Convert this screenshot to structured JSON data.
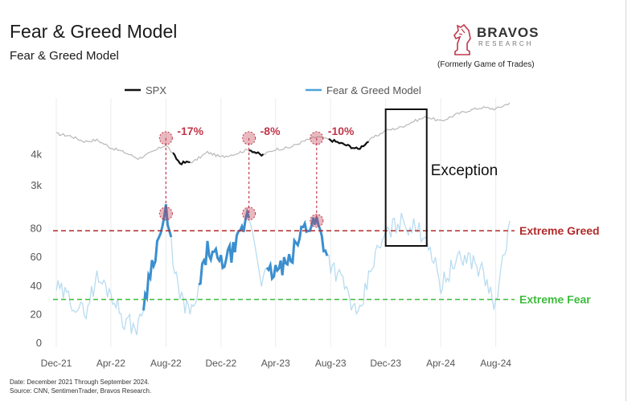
{
  "title": "Fear & Greed Model",
  "subtitle": "Fear & Greed Model",
  "brand": {
    "name": "BRAVOS",
    "sub": "RESEARCH",
    "note": "(Formerly Game of Trades)",
    "logo_icon": "knight-chess-piece-icon",
    "accent_color": "#c0374a"
  },
  "footer": {
    "date_note": "Date: December 2021 Through September 2024.",
    "source_note": "Source: CNN, SentimenTrader, Bravos Research."
  },
  "chart_data": {
    "type": "line",
    "legend": [
      {
        "name": "SPX",
        "color": "#111111"
      },
      {
        "name": "Fear & Greed Model",
        "color": "#4ba3d9"
      }
    ],
    "legend_position": "top",
    "x_tick_labels": [
      "Dec-21",
      "Apr-22",
      "Aug-22",
      "Dec-22",
      "Apr-23",
      "Aug-23",
      "Dec-23",
      "Apr-24",
      "Aug-24"
    ],
    "x_range": [
      "2021-12",
      "2024-09"
    ],
    "spx_tick_labels": [
      "4k",
      "3k"
    ],
    "fg_tick_labels": [
      "80",
      "60",
      "40",
      "20",
      "0"
    ],
    "fg_range": [
      0,
      100
    ],
    "thresholds": [
      {
        "name": "Extreme Greed",
        "value": 78,
        "color": "#b22a2a"
      },
      {
        "name": "Extreme Fear",
        "value": 30,
        "color": "#3dbd3d"
      }
    ],
    "annotations": [
      {
        "text": "-17%",
        "date": "2022-08",
        "fg_value": 90,
        "color": "#c0374a"
      },
      {
        "text": "-8%",
        "date": "2023-02",
        "fg_value": 90,
        "color": "#c0374a"
      },
      {
        "text": "-10%",
        "date": "2023-07",
        "fg_value": 85,
        "color": "#c0374a"
      }
    ],
    "exception": {
      "text": "Exception",
      "from": "2023-12",
      "to": "2024-03"
    },
    "series": [
      {
        "name": "SPX",
        "dates": [
          "2021-12-01",
          "2022-01-01",
          "2022-02-01",
          "2022-03-01",
          "2022-04-01",
          "2022-05-01",
          "2022-06-01",
          "2022-07-01",
          "2022-08-01",
          "2022-09-01",
          "2022-10-01",
          "2022-11-01",
          "2022-12-01",
          "2023-01-01",
          "2023-02-01",
          "2023-03-01",
          "2023-04-01",
          "2023-05-01",
          "2023-06-01",
          "2023-07-01",
          "2023-08-01",
          "2023-09-01",
          "2023-10-01",
          "2023-11-01",
          "2023-12-01",
          "2024-01-01",
          "2024-02-01",
          "2024-03-01",
          "2024-04-01",
          "2024-05-01",
          "2024-06-01",
          "2024-07-01",
          "2024-08-01",
          "2024-09-01"
        ],
        "values": [
          4650,
          4580,
          4400,
          4450,
          4200,
          4050,
          3850,
          4050,
          4300,
          3700,
          3750,
          4050,
          3900,
          4000,
          4150,
          3950,
          4150,
          4200,
          4400,
          4550,
          4450,
          4300,
          4150,
          4500,
          4750,
          4850,
          5050,
          5200,
          5050,
          5250,
          5400,
          5500,
          5450,
          5650
        ]
      },
      {
        "name": "Fear & Greed Model",
        "dates": [
          "2021-12-01",
          "2022-01-01",
          "2022-02-01",
          "2022-03-01",
          "2022-04-01",
          "2022-05-01",
          "2022-06-01",
          "2022-07-01",
          "2022-08-01",
          "2022-09-01",
          "2022-10-01",
          "2022-11-01",
          "2022-12-01",
          "2023-01-01",
          "2023-02-01",
          "2023-03-01",
          "2023-04-01",
          "2023-05-01",
          "2023-06-01",
          "2023-07-01",
          "2023-08-01",
          "2023-09-01",
          "2023-10-01",
          "2023-11-01",
          "2023-12-01",
          "2024-01-01",
          "2024-02-01",
          "2024-03-01",
          "2024-04-01",
          "2024-05-01",
          "2024-06-01",
          "2024-07-01",
          "2024-08-01",
          "2024-09-01"
        ],
        "values": [
          38,
          30,
          20,
          45,
          35,
          15,
          10,
          55,
          90,
          30,
          20,
          65,
          55,
          65,
          90,
          45,
          50,
          55,
          80,
          85,
          55,
          40,
          15,
          55,
          75,
          85,
          80,
          75,
          40,
          55,
          60,
          50,
          25,
          85
        ]
      }
    ]
  }
}
